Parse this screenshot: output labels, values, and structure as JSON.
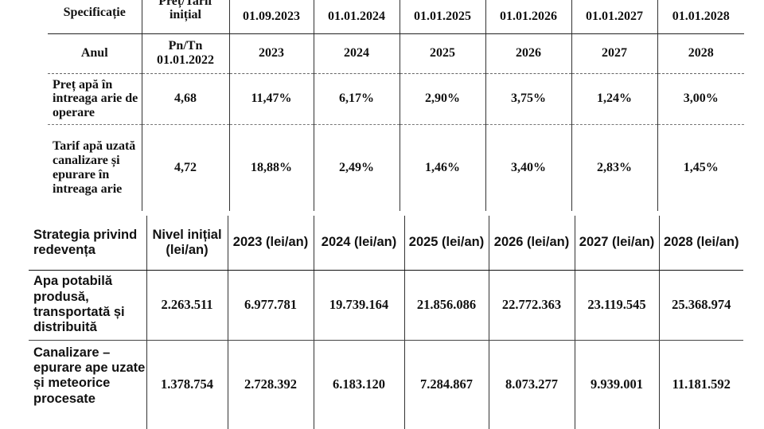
{
  "table1": {
    "col_spec": "Specificație",
    "col_initial_top": "Preț/Tarif inițial",
    "col_initial_bottom": "Pn/Tn 01.01.2022",
    "dates": [
      "01.09.2023",
      "01.01.2024",
      "01.01.2025",
      "01.01.2026",
      "01.01.2027",
      "01.01.2028"
    ],
    "row_anul_label": "Anul",
    "years": [
      "2023",
      "2024",
      "2025",
      "2026",
      "2027",
      "2028"
    ],
    "rows": [
      {
        "label": "Preț apă în intreaga arie de operare",
        "initial": "4,68",
        "values": [
          "11,47%",
          "6,17%",
          "2,90%",
          "3,75%",
          "1,24%",
          "3,00%"
        ]
      },
      {
        "label": "Tarif apă uzată canalizare și epurare în intreaga arie",
        "initial": "4,72",
        "values": [
          "18,88%",
          "2,49%",
          "1,46%",
          "3,40%",
          "2,83%",
          "1,45%"
        ]
      }
    ]
  },
  "table2": {
    "col_strategy": "Strategia privind redevența",
    "col_initial": "Nivel inițial (lei/an)",
    "years": [
      "2023 (lei/an)",
      "2024 (lei/an)",
      "2025 (lei/an)",
      "2026 (lei/an)",
      "2027 (lei/an)",
      "2028 (lei/an)"
    ],
    "rows": [
      {
        "label": "Apa potabilă produsă, transportată și distribuită",
        "initial": "2.263.511",
        "values": [
          "6.977.781",
          "19.739.164",
          "21.856.086",
          "22.772.363",
          "23.119.545",
          "25.368.974"
        ]
      },
      {
        "label": "Canalizare – epurare ape uzate și meteorice procesate",
        "initial": "1.378.754",
        "values": [
          "2.728.392",
          "6.183.120",
          "7.284.867",
          "8.073.277",
          "9.939.001",
          "11.181.592"
        ]
      }
    ]
  }
}
